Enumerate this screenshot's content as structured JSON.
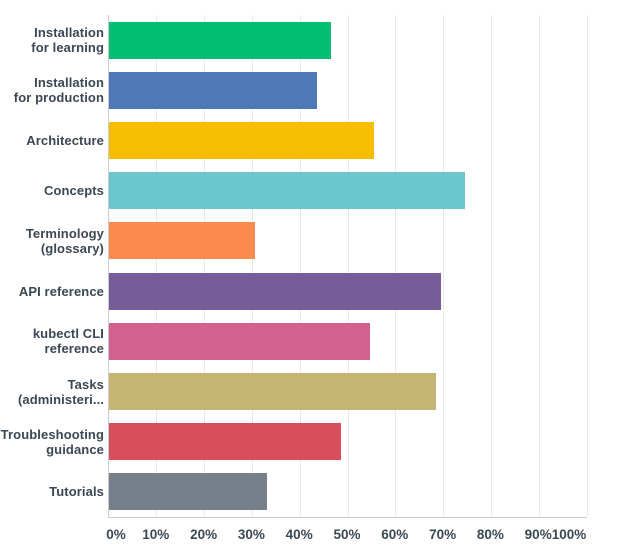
{
  "chart_data": {
    "type": "bar",
    "orientation": "horizontal",
    "categories": [
      "Installation for learning",
      "Installation for production",
      "Architecture",
      "Concepts",
      "Terminology (glossary)",
      "API reference",
      "kubectl CLI reference",
      "Tasks (administeri...",
      "Troubleshooting guidance",
      "Tutorials"
    ],
    "category_lines": [
      [
        "Installation",
        "for learning"
      ],
      [
        "Installation",
        "for production"
      ],
      [
        "Architecture"
      ],
      [
        "Concepts"
      ],
      [
        "Terminology",
        "(glossary)"
      ],
      [
        "API reference"
      ],
      [
        "kubectl CLI",
        "reference"
      ],
      [
        "Tasks",
        "(administeri..."
      ],
      [
        "Troubleshooting",
        "guidance"
      ],
      [
        "Tutorials"
      ]
    ],
    "values": [
      46.5,
      43.5,
      55.5,
      74.5,
      30.5,
      69.5,
      54.5,
      68.5,
      48.5,
      33
    ],
    "unit": "%",
    "colors": [
      "#00bd71",
      "#4e79b6",
      "#f7bd00",
      "#6bc6cb",
      "#fb8a4e",
      "#765d99",
      "#d2618f",
      "#c6b475",
      "#d94e5c",
      "#75808b"
    ],
    "x_ticks": [
      "0%",
      "10%",
      "20%",
      "30%",
      "40%",
      "50%",
      "60%",
      "70%",
      "80%",
      "90%",
      "100%"
    ],
    "xlim": [
      0,
      100
    ],
    "grid": "vertical",
    "legend": "none",
    "title": "",
    "xlabel": "",
    "ylabel": "",
    "style": {
      "gridline_color": "#e9e9e9",
      "axis_line_color": "#c9cdd2",
      "label_color": "#3b4754",
      "background_color": "#ffffff"
    }
  }
}
